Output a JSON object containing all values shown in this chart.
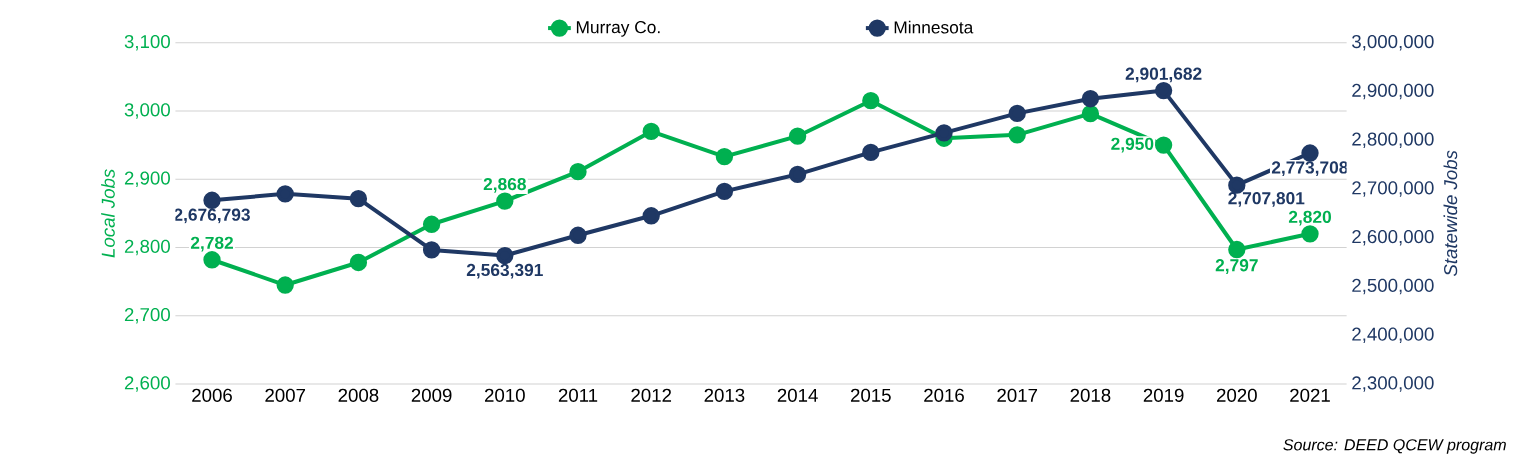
{
  "chart_data": {
    "type": "line",
    "categories": [
      "2006",
      "2007",
      "2008",
      "2009",
      "2010",
      "2011",
      "2012",
      "2013",
      "2014",
      "2015",
      "2016",
      "2017",
      "2018",
      "2019",
      "2020",
      "2021"
    ],
    "series": [
      {
        "name": "Murray Co.",
        "color": "#00b050",
        "values": [
          2782,
          2745,
          2778,
          2834,
          2868,
          2911,
          2970,
          2933,
          2963,
          3015,
          2960,
          2965,
          2996,
          2950,
          2797,
          2820
        ],
        "value_labels": [
          "2,782",
          null,
          null,
          null,
          "2,868",
          null,
          null,
          null,
          null,
          null,
          null,
          null,
          null,
          "2,950",
          "2,797",
          "2,820"
        ]
      },
      {
        "name": "Minnesota",
        "color": "#1f3864",
        "axis": "y2",
        "values": [
          2676793,
          2690000,
          2680000,
          2575000,
          2563391,
          2605000,
          2645000,
          2695000,
          2730000,
          2775000,
          2815000,
          2855000,
          2885000,
          2901682,
          2707801,
          2773708
        ],
        "value_labels": [
          "2,676,793",
          null,
          null,
          null,
          "2,563,391",
          null,
          null,
          null,
          null,
          null,
          null,
          null,
          null,
          "2,901,682",
          "2,707,801",
          "2,773,708"
        ]
      }
    ],
    "ylim": [
      2600,
      3100
    ],
    "yticks": [
      {
        "value": 2600,
        "label": "2,600"
      },
      {
        "value": 2700,
        "label": "2,700"
      },
      {
        "value": 2800,
        "label": "2,800"
      },
      {
        "value": 2900,
        "label": "2,900"
      },
      {
        "value": 3000,
        "label": "3,000"
      },
      {
        "value": 3100,
        "label": "3,100"
      }
    ],
    "y2lim": [
      2300000,
      3000000
    ],
    "y2ticks": [
      {
        "value": 2300000,
        "label": "2,300,000"
      },
      {
        "value": 2400000,
        "label": "2,400,000"
      },
      {
        "value": 2500000,
        "label": "2,500,000"
      },
      {
        "value": 2600000,
        "label": "2,600,000"
      },
      {
        "value": 2700000,
        "label": "2,700,000"
      },
      {
        "value": 2800000,
        "label": "2,800,000"
      },
      {
        "value": 2900000,
        "label": "2,900,000"
      },
      {
        "value": 3000000,
        "label": "3,000,000"
      }
    ],
    "ylabel": "Local Jobs",
    "y2label": "Statewide Jobs",
    "annotations": [
      "Source: DEED QCEW program"
    ],
    "grid": "y",
    "legend": "top",
    "marker": "circle",
    "line_style": "solid"
  }
}
